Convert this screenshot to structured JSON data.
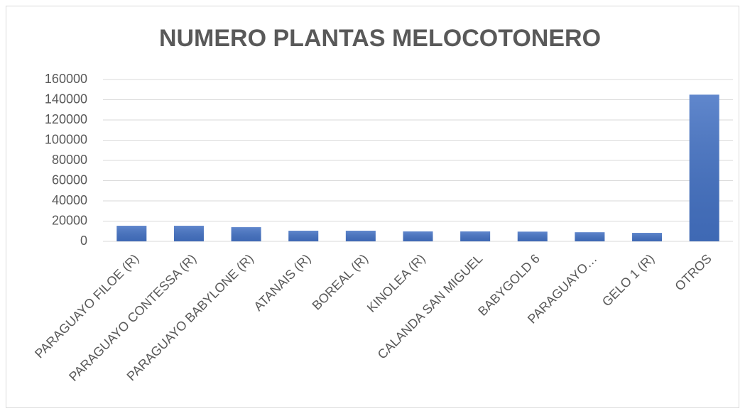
{
  "chart_data": {
    "type": "bar",
    "title": "NUMERO PLANTAS MELOCOTONERO",
    "categories": [
      "PARAGUAYO FILOE (R)",
      "PARAGUAYO CONTESSA (R)",
      "PARAGUAYO BABYLONE (R)",
      "ATANAIS (R)",
      "BOREAL (R)",
      "KINOLEA (R)",
      "CALANDA SAN MIGUEL",
      "BABYGOLD 6",
      "PARAGUAYO…",
      "GELO 1 (R)",
      "OTROS"
    ],
    "values": [
      15400,
      15400,
      14000,
      10500,
      10500,
      9800,
      9800,
      9600,
      9000,
      8400,
      145000
    ],
    "color": "#4472c4",
    "ylim": [
      0,
      160000
    ],
    "yticks": [
      0,
      20000,
      40000,
      60000,
      80000,
      100000,
      120000,
      140000,
      160000
    ],
    "grid": true
  }
}
